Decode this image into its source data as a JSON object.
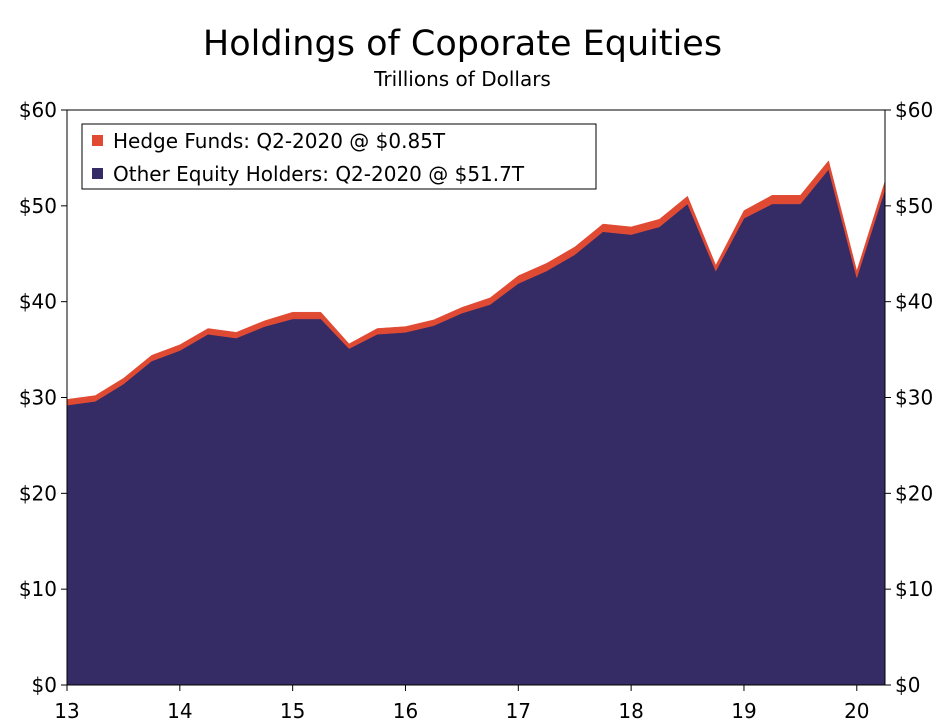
{
  "chart_data": {
    "type": "area",
    "stacked": true,
    "title": "Holdings of Coporate Equities",
    "subtitle": "Trillions of Dollars",
    "xlabel": "",
    "ylabel": "",
    "x_tick_labels": [
      "13",
      "14",
      "15",
      "16",
      "17",
      "18",
      "19",
      "20"
    ],
    "x_tick_values": [
      2013,
      2014,
      2015,
      2016,
      2017,
      2018,
      2019,
      2020
    ],
    "xlim": [
      2013,
      2020.25
    ],
    "ylim": [
      0,
      60
    ],
    "y_tick_values": [
      0,
      10,
      20,
      30,
      40,
      50,
      60
    ],
    "y_tick_labels": [
      "$0",
      "$10",
      "$20",
      "$30",
      "$40",
      "$50",
      "$60"
    ],
    "grid": false,
    "legend_position": "top-left",
    "x": [
      2013.0,
      2013.25,
      2013.5,
      2013.75,
      2014.0,
      2014.25,
      2014.5,
      2014.75,
      2015.0,
      2015.25,
      2015.5,
      2015.75,
      2016.0,
      2016.25,
      2016.5,
      2016.75,
      2017.0,
      2017.25,
      2017.5,
      2017.75,
      2018.0,
      2018.25,
      2018.5,
      2018.75,
      2019.0,
      2019.25,
      2019.5,
      2019.75,
      2020.0,
      2020.25
    ],
    "series": [
      {
        "name": "Other Equity Holders: Q2-2020 @ $51.7T",
        "color": "#352c66",
        "values": [
          29.2,
          29.6,
          31.4,
          33.8,
          34.9,
          36.6,
          36.2,
          37.4,
          38.2,
          38.2,
          35.1,
          36.6,
          36.8,
          37.5,
          38.8,
          39.7,
          41.9,
          43.2,
          44.9,
          47.3,
          47.0,
          47.8,
          50.2,
          43.2,
          48.7,
          50.2,
          50.2,
          53.8,
          42.5,
          51.7
        ]
      },
      {
        "name": "Hedge Funds: Q2-2020 @ $0.85T",
        "color": "#e04a33",
        "values": [
          0.6,
          0.6,
          0.6,
          0.6,
          0.6,
          0.6,
          0.6,
          0.6,
          0.7,
          0.7,
          0.5,
          0.6,
          0.6,
          0.6,
          0.6,
          0.7,
          0.8,
          0.8,
          0.8,
          0.8,
          0.8,
          0.8,
          0.8,
          0.6,
          0.8,
          0.9,
          0.9,
          0.9,
          0.7,
          0.85
        ]
      }
    ]
  }
}
